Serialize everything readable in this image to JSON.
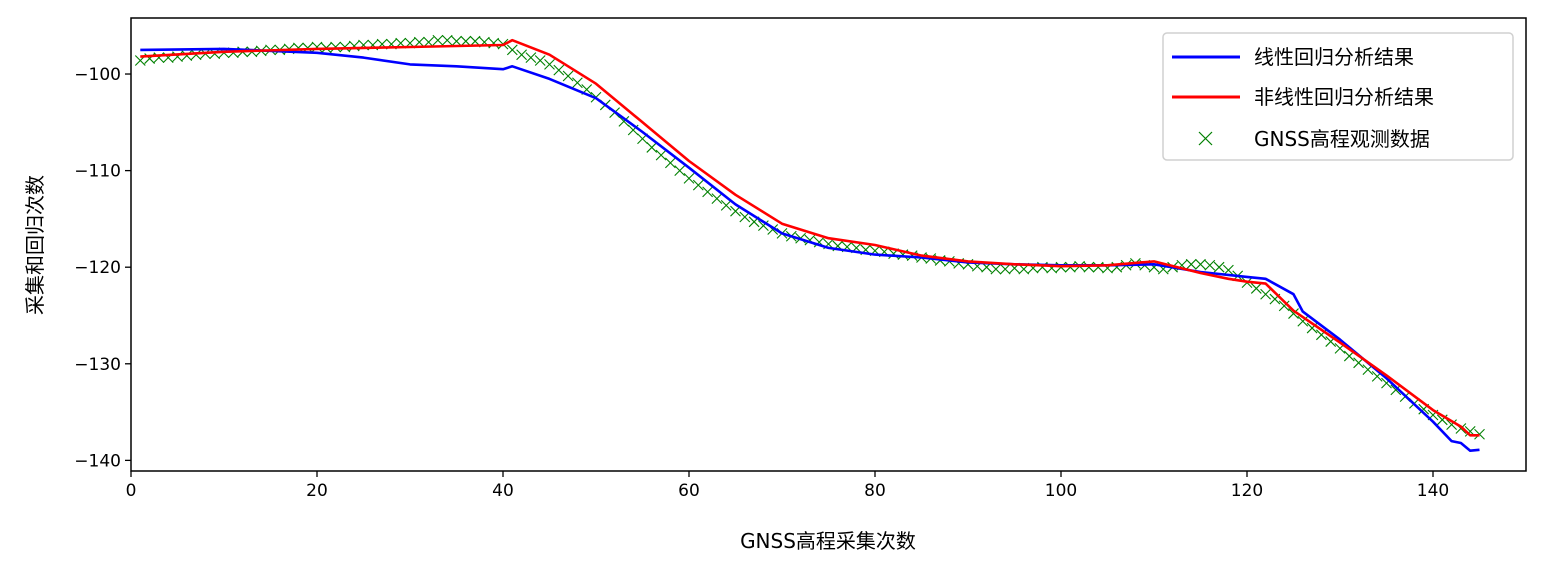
{
  "chart_data": {
    "type": "line",
    "xlabel": "GNSS高程采集次数",
    "ylabel": "采集和回归次数",
    "xlim": [
      0,
      150
    ],
    "ylim": [
      -141.1,
      -94.2
    ],
    "xticks": [
      0,
      20,
      40,
      60,
      80,
      100,
      120,
      140
    ],
    "xtick_labels": [
      "0",
      "20",
      "40",
      "60",
      "80",
      "100",
      "120",
      "140"
    ],
    "yticks": [
      -100,
      -110,
      -120,
      -130,
      -140
    ],
    "ytick_labels": [
      "−100",
      "−110",
      "−120",
      "−130",
      "−140"
    ],
    "grid": false,
    "legend_placement": "top-right",
    "series": [
      {
        "name": "线性回归分析结果",
        "kind": "line",
        "color": "#0000ff",
        "x": [
          1,
          10,
          20,
          25,
          30,
          35,
          40,
          41,
          45,
          50,
          55,
          60,
          65,
          70,
          75,
          80,
          85,
          90,
          95,
          100,
          105,
          110,
          115,
          120,
          122,
          125,
          126,
          130,
          135,
          140,
          142,
          143,
          144,
          145
        ],
        "y": [
          -97.5,
          -97.4,
          -97.8,
          -98.3,
          -99.0,
          -99.2,
          -99.5,
          -99.2,
          -100.5,
          -102.5,
          -106.0,
          -109.7,
          -113.5,
          -116.5,
          -118.0,
          -118.7,
          -119.0,
          -119.5,
          -119.7,
          -119.8,
          -119.8,
          -119.7,
          -120.5,
          -121.0,
          -121.2,
          -122.8,
          -124.6,
          -127.5,
          -131.5,
          -136.0,
          -138.0,
          -138.2,
          -139.0,
          -138.9
        ]
      },
      {
        "name": "非线性回归分析结果",
        "kind": "line",
        "color": "#ff0000",
        "x": [
          1,
          10,
          20,
          25,
          30,
          35,
          40,
          41,
          45,
          50,
          55,
          60,
          65,
          70,
          75,
          80,
          85,
          90,
          95,
          100,
          105,
          110,
          115,
          118,
          120,
          122,
          125,
          130,
          135,
          140,
          143,
          144,
          145
        ],
        "y": [
          -98.2,
          -97.7,
          -97.4,
          -97.3,
          -97.2,
          -97.1,
          -97.0,
          -96.5,
          -98.0,
          -101.0,
          -105.0,
          -109.0,
          -112.5,
          -115.5,
          -117.0,
          -117.7,
          -118.8,
          -119.4,
          -119.7,
          -119.9,
          -119.8,
          -119.4,
          -120.6,
          -121.2,
          -121.5,
          -121.7,
          -124.5,
          -127.8,
          -131.2,
          -134.8,
          -136.5,
          -137.4,
          -137.4
        ]
      },
      {
        "name": "GNSS高程观测数据",
        "kind": "scatter",
        "marker": "x",
        "color": "#008000",
        "x_start": 1,
        "x_step": 1,
        "y": [
          -98.6,
          -98.4,
          -98.3,
          -98.3,
          -98.2,
          -98.1,
          -98.0,
          -97.9,
          -97.9,
          -97.8,
          -97.8,
          -97.7,
          -97.7,
          -97.6,
          -97.5,
          -97.5,
          -97.4,
          -97.3,
          -97.3,
          -97.2,
          -97.3,
          -97.2,
          -97.2,
          -97.1,
          -97.0,
          -97.0,
          -96.9,
          -96.9,
          -96.8,
          -96.8,
          -96.7,
          -96.7,
          -96.5,
          -96.5,
          -96.6,
          -96.6,
          -96.6,
          -96.7,
          -96.8,
          -96.9,
          -97.5,
          -98.0,
          -98.3,
          -98.6,
          -99.0,
          -99.6,
          -100.2,
          -100.9,
          -101.6,
          -102.4,
          -103.2,
          -104.0,
          -104.9,
          -105.8,
          -106.7,
          -107.6,
          -108.4,
          -109.2,
          -110.0,
          -110.8,
          -111.5,
          -112.2,
          -112.9,
          -113.6,
          -114.2,
          -114.8,
          -115.3,
          -115.7,
          -116.1,
          -116.5,
          -116.8,
          -117.0,
          -117.2,
          -117.4,
          -117.6,
          -117.8,
          -117.9,
          -118.0,
          -118.2,
          -118.3,
          -118.4,
          -118.6,
          -118.7,
          -118.8,
          -119.0,
          -119.1,
          -119.3,
          -119.4,
          -119.6,
          -119.7,
          -119.9,
          -120.0,
          -120.2,
          -120.2,
          -120.1,
          -120.2,
          -120.1,
          -120.0,
          -120.1,
          -120.0,
          -120.0,
          -119.9,
          -120.0,
          -120.0,
          -120.1,
          -120.0,
          -119.8,
          -119.6,
          -119.8,
          -120.0,
          -120.2,
          -120.0,
          -119.8,
          -119.7,
          -119.7,
          -119.8,
          -120.0,
          -120.3,
          -120.9,
          -121.6,
          -122.2,
          -122.8,
          -123.3,
          -124.0,
          -124.8,
          -125.6,
          -126.3,
          -127.0,
          -127.7,
          -128.4,
          -129.2,
          -129.9,
          -130.6,
          -131.3,
          -132.0,
          -132.7,
          -133.4,
          -134.1,
          -134.7,
          -135.3,
          -135.8,
          -136.3,
          -136.7,
          -137.0,
          -137.3
        ]
      }
    ]
  }
}
